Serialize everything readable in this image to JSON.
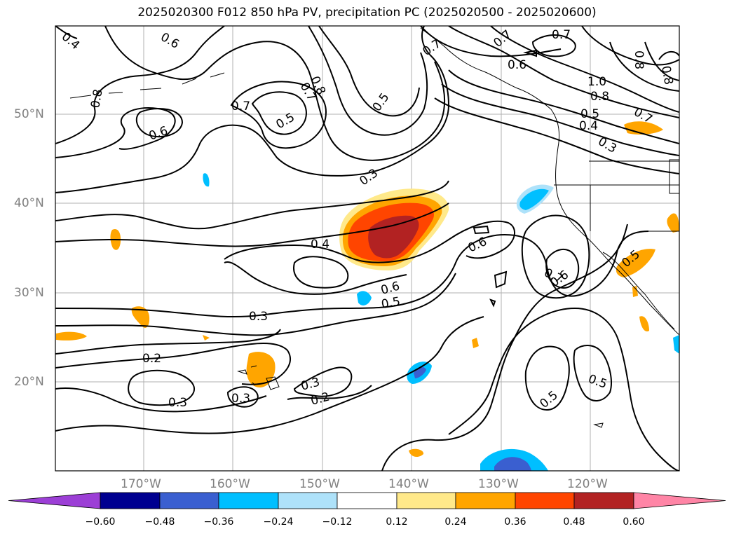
{
  "title": "2025020300 F012 850 hPa PV, precipitation PC (2025020500 - 2025020600)",
  "lat_labels": [
    "50°N",
    "40°N",
    "30°N",
    "20°N"
  ],
  "lon_labels": [
    "170°W",
    "160°W",
    "150°W",
    "140°W",
    "130°W",
    "120°W"
  ],
  "colorbar": {
    "ticks": [
      "−0.60",
      "−0.48",
      "−0.36",
      "−0.24",
      "−0.12",
      "0.12",
      "0.24",
      "0.36",
      "0.48",
      "0.60"
    ],
    "colors": [
      "#9c3fd6",
      "#000090",
      "#3a5fd0",
      "#00bfff",
      "#aee2fa",
      "#ffffff",
      "#ffe98a",
      "#ffa500",
      "#ff4500",
      "#b22222",
      "#ff85a6"
    ]
  },
  "contour_labels": [
    "0.4",
    "0.6",
    "0.8",
    "0.7",
    "0.5",
    "0.6",
    "0.7",
    "0.8",
    "0.5",
    "0.3",
    "0.4",
    "0.7",
    "0.6",
    "0.7",
    "0.8",
    "0.7",
    "1.0",
    "0.8",
    "0.5",
    "0.4",
    "0.3",
    "0.7",
    "0.6",
    "0.6",
    "0.5",
    "0.7",
    "0.6",
    "0.5",
    "0.3",
    "0.2",
    "0.3",
    "0.3",
    "0.3",
    "0.2",
    "0.5",
    "0.5",
    "0.8"
  ]
}
